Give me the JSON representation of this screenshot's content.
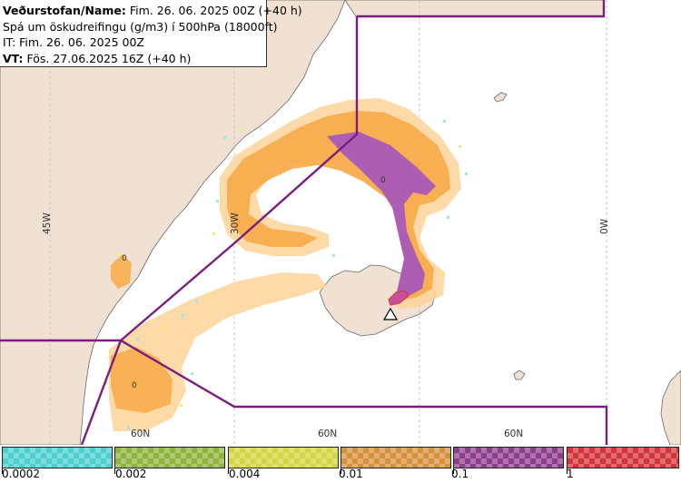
{
  "info_panel": {
    "line1_bold": "Veðurstofan/Name:",
    "line1_rest": " Fim. 26. 06. 2025 00Z (+40 h)",
    "line2": "Spá um öskudreifingu (g/m3) í 500hPa (18000ft)",
    "line3": "IT: Fim. 26. 06. 2025 00Z",
    "line4_bold": "VT:",
    "line4_rest": " Fös. 27.06.2025 16Z (+40 h)"
  },
  "map": {
    "lon_labels": {
      "w45": "45W",
      "w30": "30W",
      "w0": "0W"
    },
    "lat_labels": {
      "n60_left": "60N",
      "n60_mid": "60N",
      "n60_right": "60N"
    },
    "concentration_marks": {
      "greenland": "0",
      "north_sea": "0",
      "southwest": "0"
    },
    "colors": {
      "ocean": "#ffffff",
      "land": "#f1e1d3",
      "coast": "#6b6b6b",
      "graticule": "#bdbdbd",
      "area_boundary": "#7a1e7e",
      "plume_light": "#fdd398",
      "plume_orange": "#f7ad4d",
      "plume_purple": "#ac5eb3",
      "plume_core": "#c8509a",
      "scatter_cyan": "#99e6e6",
      "scatter_yellow": "#f0f070"
    }
  },
  "legend": {
    "tick_labels": [
      "0.0002",
      "0.002",
      "0.004",
      "0.01",
      "0.1",
      "1"
    ],
    "colors": [
      "#4ecfcf",
      "#8db43c",
      "#d3d542",
      "#d7913c",
      "#8d3e8d",
      "#d4353b"
    ]
  }
}
